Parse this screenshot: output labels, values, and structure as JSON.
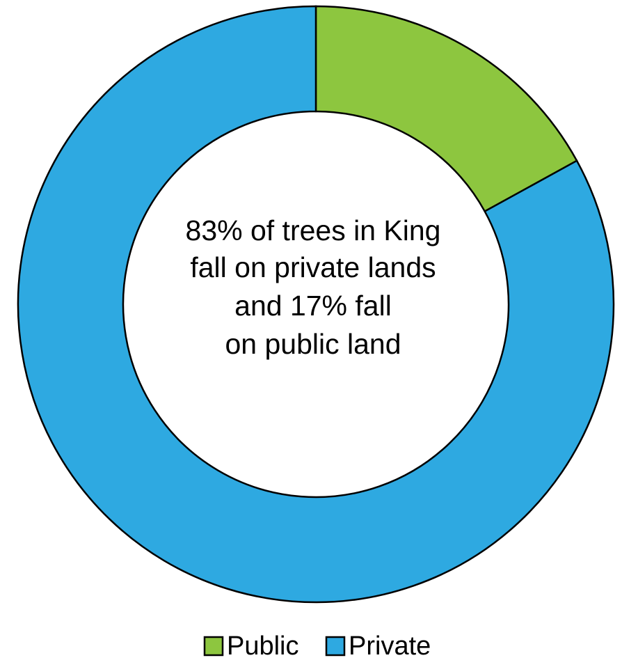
{
  "chart_data": {
    "type": "pie",
    "variant": "donut",
    "categories": [
      "Public",
      "Private"
    ],
    "values": [
      17,
      83
    ],
    "unit": "%",
    "colors": [
      "#8DC63F",
      "#2EA9E1"
    ],
    "center_annotation": [
      "83% of trees in King",
      "fall on private lands",
      "and 17% fall",
      "on public land"
    ],
    "legend": {
      "position": "bottom",
      "entries": [
        "Public",
        "Private"
      ]
    }
  }
}
